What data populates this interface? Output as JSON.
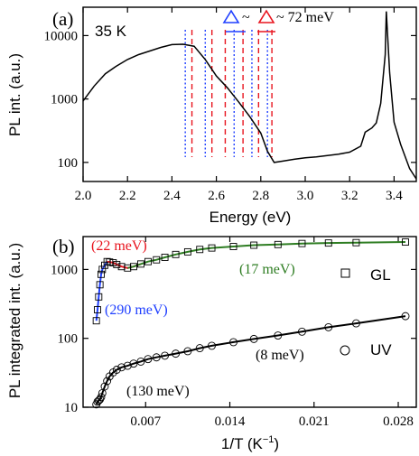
{
  "chart_data": [
    {
      "type": "line",
      "panel_label": "(a)",
      "temperature_label": "35 K",
      "xlabel": "Energy (eV)",
      "ylabel": "PL int. (a.u.)",
      "xlim": [
        2.0,
        3.5
      ],
      "ylim": [
        50,
        28000
      ],
      "yscale": "log",
      "xticks": [
        "2.0",
        "2.2",
        "2.4",
        "2.6",
        "2.8",
        "3.0",
        "3.2",
        "3.4"
      ],
      "yticks": [
        "100",
        "1000",
        "10000"
      ],
      "series": [
        {
          "color": "#000000",
          "x": [
            2.0,
            2.05,
            2.1,
            2.15,
            2.2,
            2.25,
            2.3,
            2.35,
            2.4,
            2.45,
            2.5,
            2.55,
            2.6,
            2.65,
            2.7,
            2.75,
            2.8,
            2.83,
            2.86,
            2.9,
            2.95,
            3.0,
            3.05,
            3.1,
            3.15,
            3.2,
            3.25,
            3.27,
            3.3,
            3.32,
            3.34,
            3.36,
            3.365,
            3.38,
            3.4,
            3.43,
            3.47,
            3.5
          ],
          "y": [
            930,
            1600,
            2500,
            3300,
            4200,
            5000,
            5700,
            6500,
            7200,
            7300,
            6800,
            4200,
            2300,
            1500,
            900,
            530,
            290,
            150,
            100,
            105,
            112,
            118,
            122,
            128,
            135,
            145,
            180,
            300,
            350,
            420,
            850,
            5000,
            24000,
            2600,
            430,
            190,
            80,
            55
          ]
        }
      ],
      "markers": {
        "legend_text": "~ 72 meV",
        "groups": [
          {
            "color": "#1f3fff",
            "style": "dotted",
            "energies": [
              2.46,
              2.55,
              2.68,
              2.76,
              2.83
            ],
            "symbol": "Δ"
          },
          {
            "color": "#e8141e",
            "style": "dashed",
            "energies": [
              2.49,
              2.58,
              2.64,
              2.72,
              2.79,
              2.85
            ],
            "symbol": "Δ"
          }
        ]
      }
    },
    {
      "type": "scatter",
      "panel_label": "(b)",
      "xlabel": "1/T (K",
      "xlabel_exp": "−1",
      "xlabel_close": ")",
      "ylabel": "PL integrated int. (a.u.)",
      "xlim": [
        0.0018,
        0.0295
      ],
      "ylim": [
        10,
        3000
      ],
      "yscale": "log",
      "xticks": [
        "0.007",
        "0.014",
        "0.021",
        "0.028"
      ],
      "yticks": [
        "10",
        "100",
        "1000"
      ],
      "series": [
        {
          "name": "GL",
          "marker": "square",
          "x": [
            0.0029,
            0.003,
            0.0031,
            0.0032,
            0.0033,
            0.0034,
            0.0036,
            0.0038,
            0.004,
            0.0043,
            0.0046,
            0.005,
            0.0055,
            0.006,
            0.0066,
            0.0072,
            0.0079,
            0.0086,
            0.0095,
            0.0105,
            0.0115,
            0.0125,
            0.0143,
            0.016,
            0.018,
            0.02,
            0.0222,
            0.0245,
            0.0286
          ],
          "y": [
            180,
            260,
            400,
            600,
            850,
            1000,
            1150,
            1300,
            1280,
            1250,
            1180,
            1100,
            1050,
            1100,
            1200,
            1300,
            1380,
            1500,
            1650,
            1800,
            1950,
            2050,
            2150,
            2250,
            2300,
            2380,
            2420,
            2450,
            2500
          ]
        },
        {
          "name": "UV",
          "marker": "circle",
          "x": [
            0.0029,
            0.003,
            0.0031,
            0.0032,
            0.0033,
            0.0034,
            0.0036,
            0.0038,
            0.004,
            0.0043,
            0.0046,
            0.005,
            0.0055,
            0.006,
            0.0066,
            0.0072,
            0.0079,
            0.0086,
            0.0095,
            0.0105,
            0.0115,
            0.0125,
            0.0143,
            0.016,
            0.018,
            0.02,
            0.0222,
            0.0245,
            0.0286
          ],
          "y": [
            11,
            12,
            12.5,
            13,
            14,
            16,
            20,
            24,
            28,
            32,
            35,
            38,
            40,
            43,
            46,
            50,
            53,
            56,
            60,
            65,
            72,
            78,
            88,
            98,
            110,
            125,
            145,
            165,
            210
          ]
        }
      ],
      "fits": [
        {
          "label": "(22 meV)",
          "color": "#e8141e"
        },
        {
          "label": "(17 meV)",
          "color": "#2e7d22"
        },
        {
          "label": "(290 meV)",
          "color": "#1f3fff"
        },
        {
          "label": "(8 meV)",
          "color": "#000000"
        },
        {
          "label": "(130 meV)",
          "color": "#000000"
        }
      ]
    }
  ]
}
